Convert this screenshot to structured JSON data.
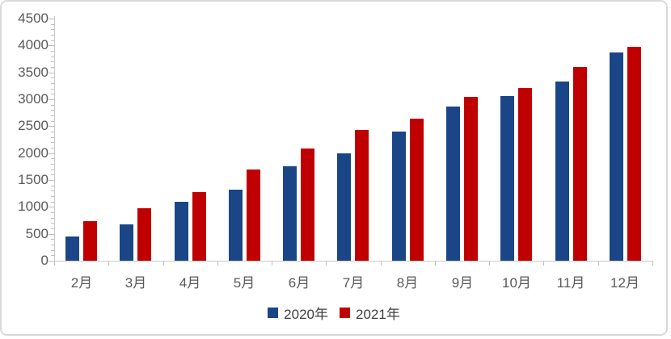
{
  "chart_data": {
    "type": "bar",
    "categories": [
      "2月",
      "3月",
      "4月",
      "5月",
      "6月",
      "7月",
      "8月",
      "9月",
      "10月",
      "11月",
      "12月"
    ],
    "series": [
      {
        "name": "2020年",
        "color": "#1A4687",
        "values": [
          450,
          680,
          1090,
          1320,
          1750,
          2000,
          2400,
          2860,
          3060,
          3330,
          3870
        ]
      },
      {
        "name": "2021年",
        "color": "#C00000",
        "values": [
          730,
          970,
          1270,
          1690,
          2090,
          2430,
          2640,
          3040,
          3210,
          3600,
          3980
        ]
      }
    ],
    "title": "",
    "xlabel": "",
    "ylabel": "",
    "ylim": [
      0,
      4500
    ],
    "ytick_step": 500,
    "y_minor_step": 100,
    "grid": false,
    "legend_position": "bottom-center"
  },
  "colors": {
    "axis_line": "#c9c9c9",
    "tick": "#bfbfbf",
    "axis_label": "#595959",
    "legend_text": "#404040",
    "card_border": "#d9d9d9",
    "background": "#ffffff"
  }
}
